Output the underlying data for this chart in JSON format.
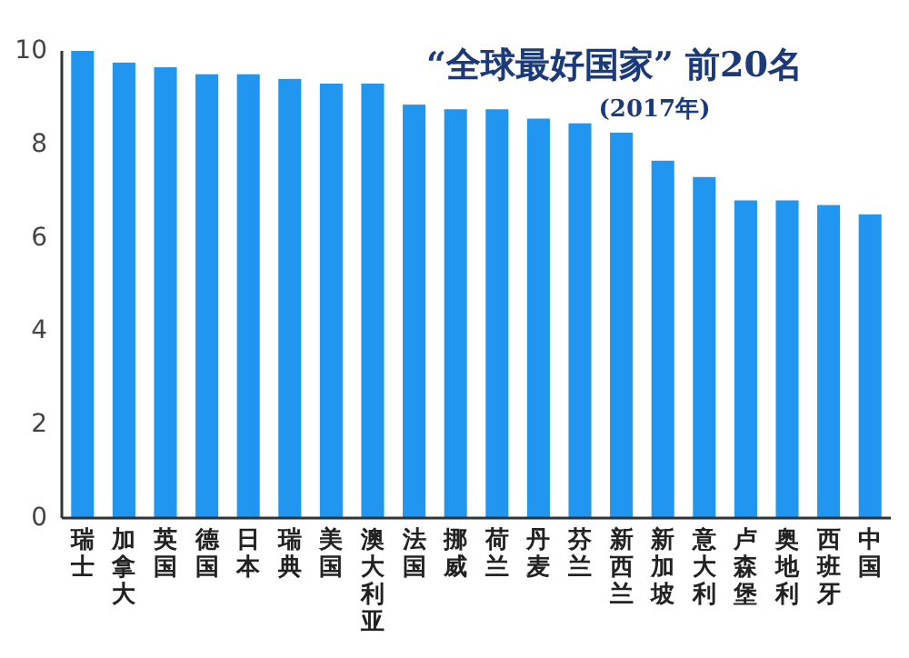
{
  "chart_data": {
    "type": "bar",
    "title": "“全球最好国家” 前20名",
    "subtitle": "(2017年)",
    "categories": [
      "瑞士",
      "加拿大",
      "英国",
      "德国",
      "日本",
      "瑞典",
      "美国",
      "澳大利亚",
      "法国",
      "挪威",
      "荷兰",
      "丹麦",
      "芬兰",
      "新西兰",
      "新加坡",
      "意大利",
      "卢森堡",
      "奥地利",
      "西班牙",
      "中国"
    ],
    "values": [
      10.0,
      9.75,
      9.65,
      9.5,
      9.5,
      9.4,
      9.3,
      9.3,
      8.85,
      8.75,
      8.75,
      8.55,
      8.45,
      8.25,
      7.65,
      7.3,
      6.8,
      6.8,
      6.7,
      6.5
    ],
    "color": "#2196f0",
    "ylim": [
      0,
      10
    ],
    "yticks": [
      0,
      2,
      4,
      6,
      8,
      10
    ],
    "grid": false
  }
}
